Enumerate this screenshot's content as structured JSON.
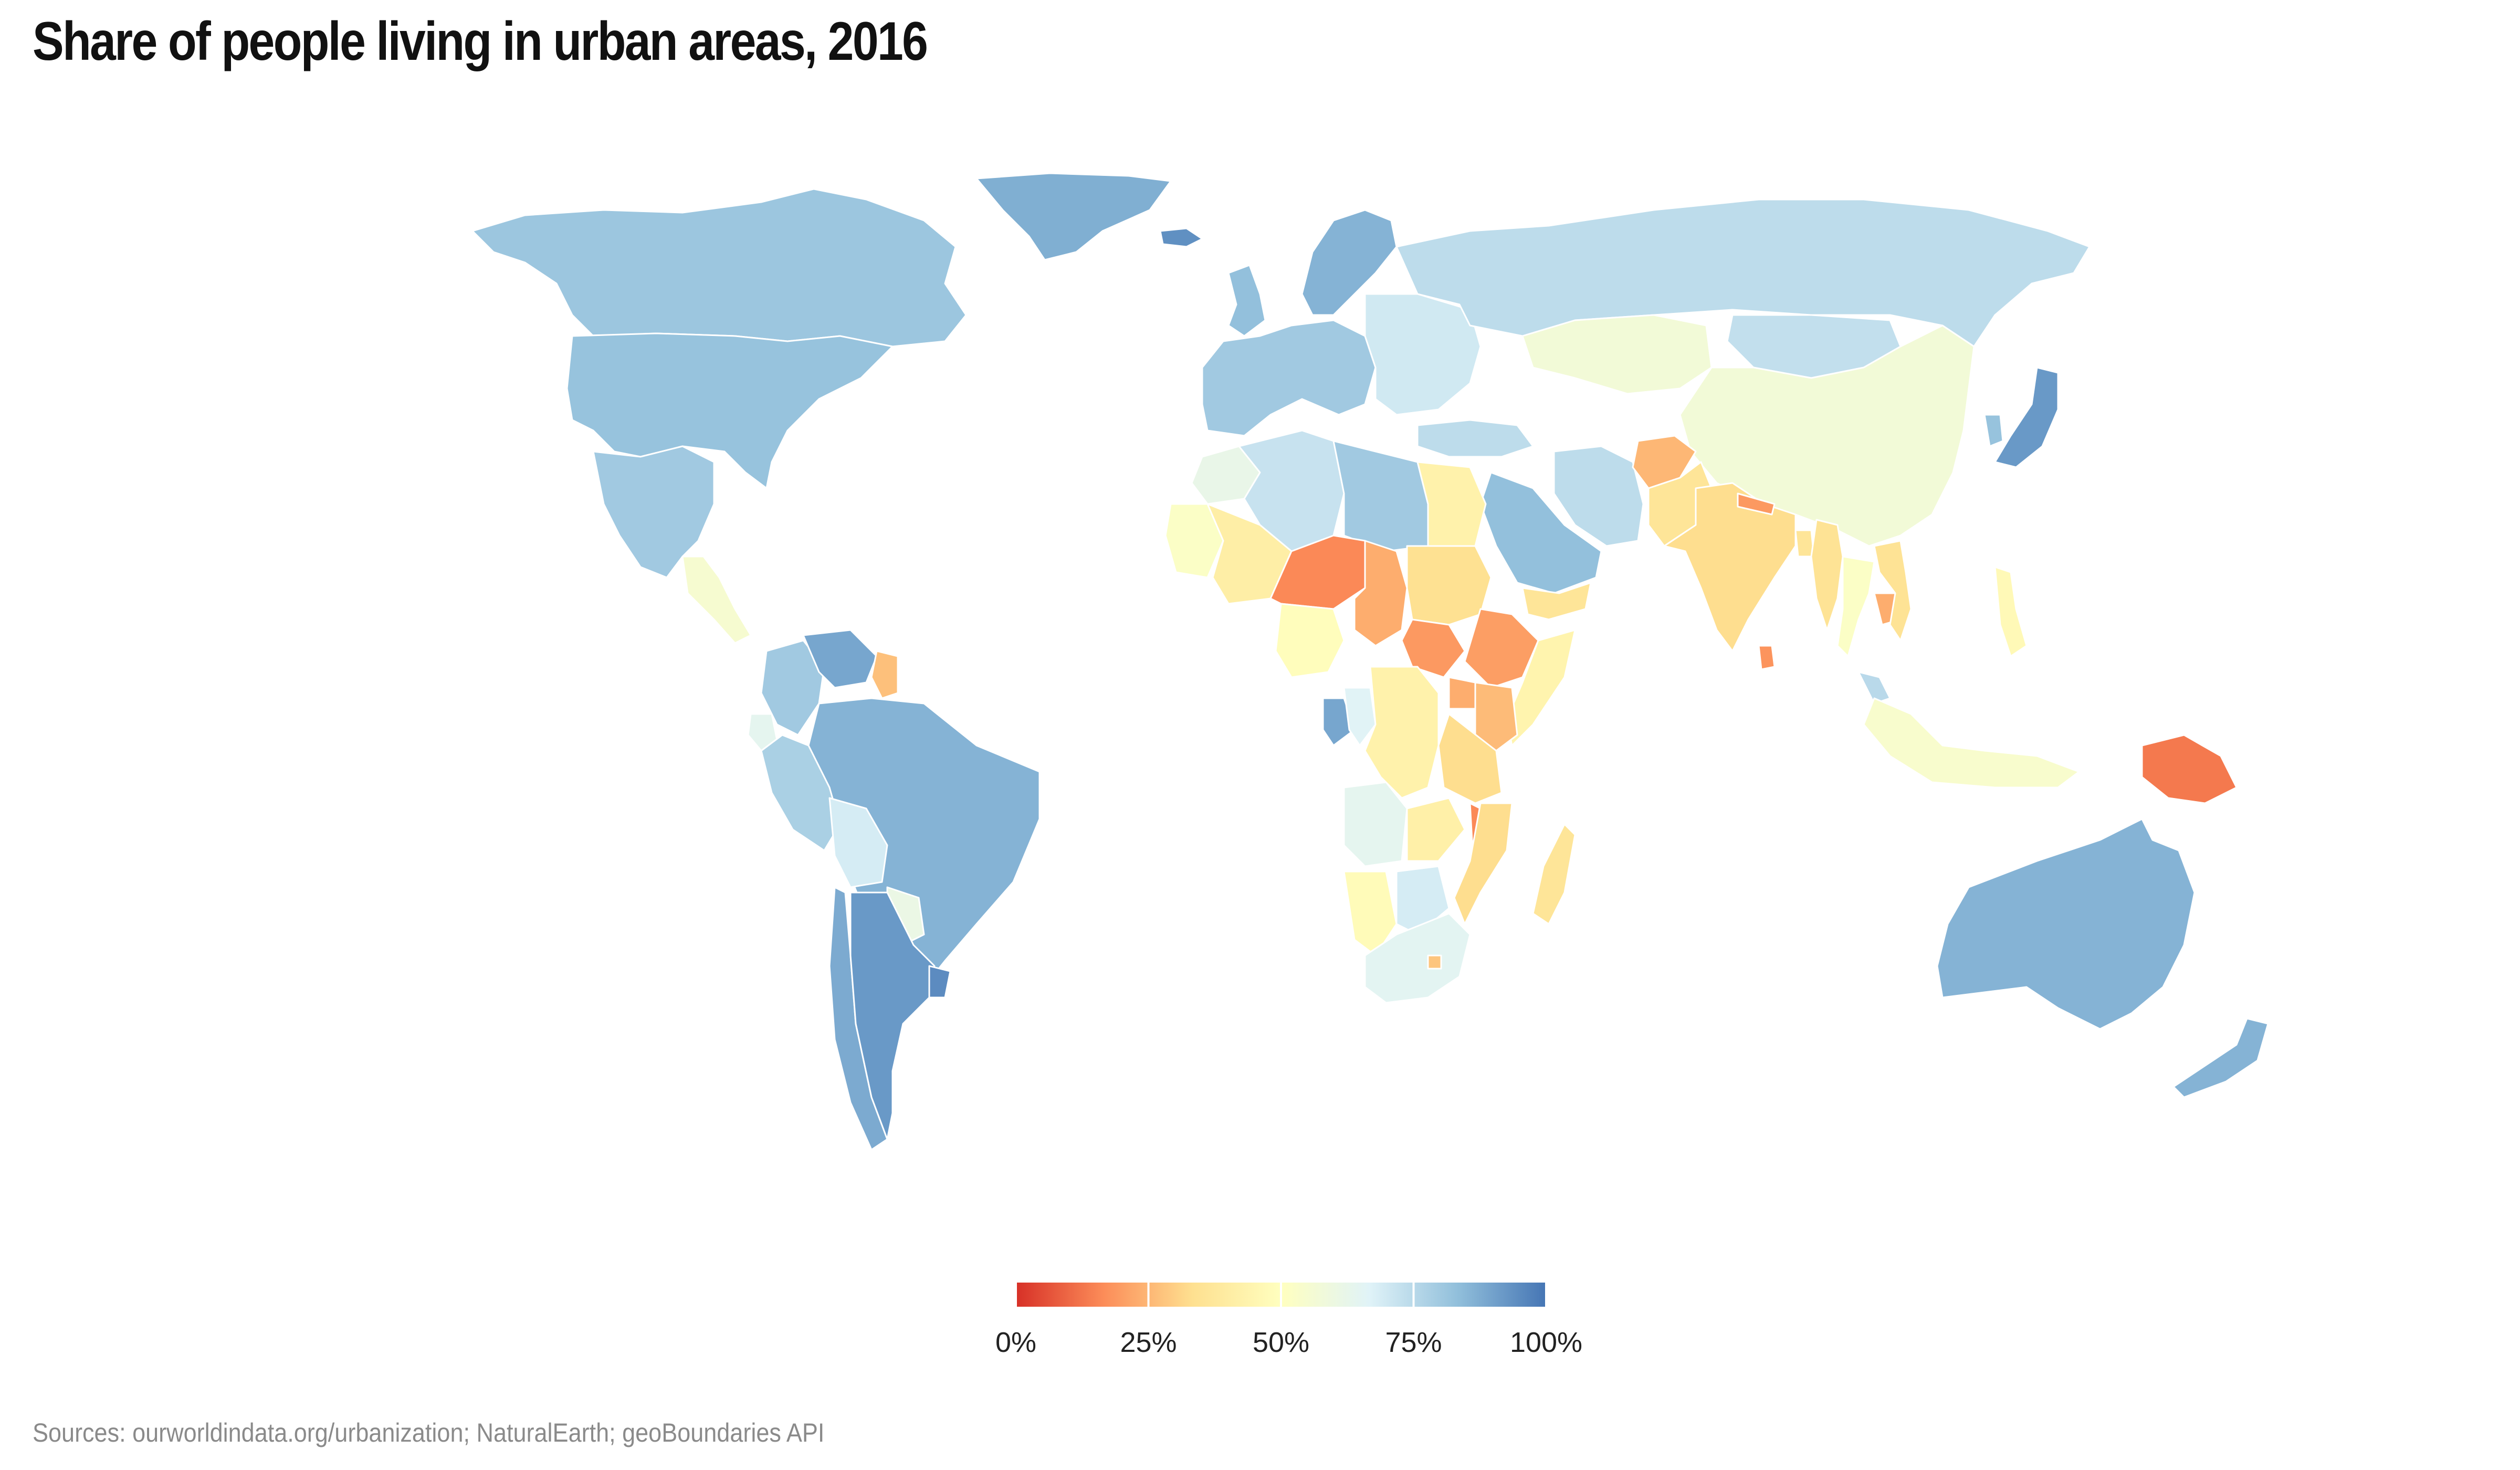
{
  "title": "Share of people living in urban areas, 2016",
  "source": "Sources: ourworldindata.org/urbanization; NaturalEarth; geoBoundaries API",
  "legend": {
    "min": 0,
    "max": 100,
    "ticks": [
      "0%",
      "25%",
      "50%",
      "75%",
      "100%"
    ],
    "colors": [
      "#d73027",
      "#fc8d59",
      "#fee090",
      "#ffffbf",
      "#e0f3f8",
      "#91bfdb",
      "#4575b4"
    ]
  },
  "colors": {
    "ocean": "#ffffff",
    "border": "#ffffff",
    "no_data": "#d0d0d0"
  },
  "chart_data": {
    "type": "choropleth",
    "title": "Share of people living in urban areas, 2016",
    "value_range": [
      0,
      100
    ],
    "regions": [
      {
        "region": "Canada",
        "value": 81
      },
      {
        "region": "United States",
        "value": 82
      },
      {
        "region": "Greenland",
        "value": 87
      },
      {
        "region": "Mexico",
        "value": 80
      },
      {
        "region": "Central America",
        "value": 55
      },
      {
        "region": "Colombia",
        "value": 80
      },
      {
        "region": "Venezuela",
        "value": 89
      },
      {
        "region": "Guyana",
        "value": 27
      },
      {
        "region": "Brazil",
        "value": 86
      },
      {
        "region": "Ecuador",
        "value": 64
      },
      {
        "region": "Peru",
        "value": 78
      },
      {
        "region": "Bolivia",
        "value": 69
      },
      {
        "region": "Paraguay",
        "value": 61
      },
      {
        "region": "Chile",
        "value": 88
      },
      {
        "region": "Argentina",
        "value": 92
      },
      {
        "region": "Uruguay",
        "value": 95
      },
      {
        "region": "Iceland",
        "value": 94
      },
      {
        "region": "United Kingdom",
        "value": 83
      },
      {
        "region": "Nordics",
        "value": 86
      },
      {
        "region": "Western Europe",
        "value": 80
      },
      {
        "region": "Eastern Europe",
        "value": 70
      },
      {
        "region": "Russia",
        "value": 74
      },
      {
        "region": "Kazakhstan",
        "value": 57
      },
      {
        "region": "Mongolia",
        "value": 73
      },
      {
        "region": "China",
        "value": 57
      },
      {
        "region": "Japan",
        "value": 92
      },
      {
        "region": "South Korea",
        "value": 82
      },
      {
        "region": "Turkey",
        "value": 74
      },
      {
        "region": "Iran",
        "value": 74
      },
      {
        "region": "Saudi Arabia",
        "value": 83
      },
      {
        "region": "Yemen",
        "value": 36
      },
      {
        "region": "Afghanistan",
        "value": 25
      },
      {
        "region": "Pakistan",
        "value": 36
      },
      {
        "region": "India",
        "value": 33
      },
      {
        "region": "Nepal",
        "value": 19
      },
      {
        "region": "Bangladesh",
        "value": 36
      },
      {
        "region": "Sri Lanka",
        "value": 18
      },
      {
        "region": "Myanmar",
        "value": 35
      },
      {
        "region": "Thailand",
        "value": 52
      },
      {
        "region": "Cambodia",
        "value": 23
      },
      {
        "region": "Vietnam",
        "value": 35
      },
      {
        "region": "Malaysia",
        "value": 75
      },
      {
        "region": "Philippines",
        "value": 47
      },
      {
        "region": "Indonesia",
        "value": 54
      },
      {
        "region": "Papua New Guinea",
        "value": 13
      },
      {
        "region": "Australia",
        "value": 86
      },
      {
        "region": "New Zealand",
        "value": 86
      },
      {
        "region": "Morocco",
        "value": 62
      },
      {
        "region": "Algeria",
        "value": 72
      },
      {
        "region": "Libya",
        "value": 80
      },
      {
        "region": "Egypt",
        "value": 43
      },
      {
        "region": "Mauritania",
        "value": 52
      },
      {
        "region": "Mali",
        "value": 41
      },
      {
        "region": "Niger",
        "value": 16
      },
      {
        "region": "Chad",
        "value": 23
      },
      {
        "region": "Sudan",
        "value": 34
      },
      {
        "region": "South Sudan",
        "value": 19
      },
      {
        "region": "Ethiopia",
        "value": 20
      },
      {
        "region": "Somalia",
        "value": 44
      },
      {
        "region": "Nigeria",
        "value": 49
      },
      {
        "region": "Gabon",
        "value": 89
      },
      {
        "region": "Congo",
        "value": 66
      },
      {
        "region": "DR Congo",
        "value": 43
      },
      {
        "region": "Uganda",
        "value": 23
      },
      {
        "region": "Kenya",
        "value": 26
      },
      {
        "region": "Tanzania",
        "value": 33
      },
      {
        "region": "Angola",
        "value": 64
      },
      {
        "region": "Zambia",
        "value": 42
      },
      {
        "region": "Malawi",
        "value": 16
      },
      {
        "region": "Mozambique",
        "value": 33
      },
      {
        "region": "Madagascar",
        "value": 36
      },
      {
        "region": "Namibia",
        "value": 48
      },
      {
        "region": "Botswana",
        "value": 69
      },
      {
        "region": "South Africa",
        "value": 65
      },
      {
        "region": "Lesotho",
        "value": 28
      }
    ]
  }
}
